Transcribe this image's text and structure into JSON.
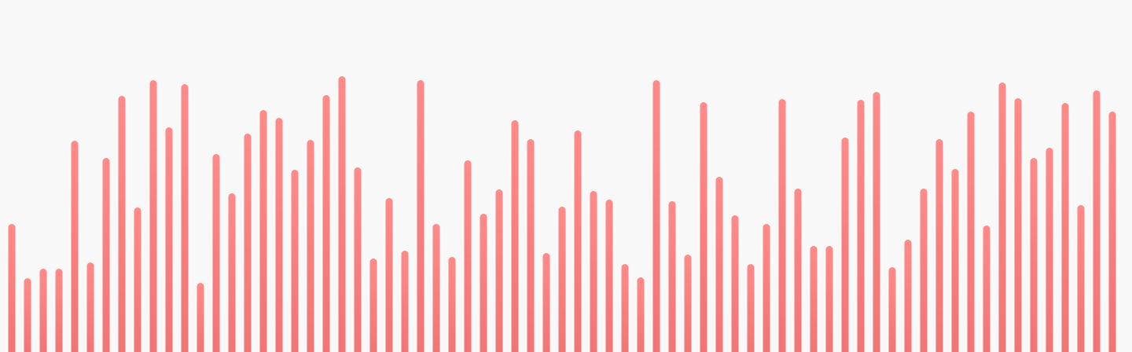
{
  "colors": {
    "background": "#f8f8f8",
    "bar_top": "#ff8a8a",
    "bar_bottom": "#f27474"
  },
  "chart_data": {
    "type": "bar",
    "title": "",
    "xlabel": "",
    "ylabel": "",
    "ylim": [
      0,
      448
    ],
    "grid": false,
    "legend": "none",
    "values": [
      163,
      94,
      106,
      106,
      269,
      114,
      247,
      326,
      184,
      346,
      286,
      341,
      88,
      252,
      202,
      278,
      308,
      298,
      232,
      270,
      327,
      351,
      235,
      119,
      196,
      129,
      346,
      163,
      121,
      244,
      176,
      207,
      295,
      271,
      126,
      185,
      282,
      205,
      194,
      112,
      95,
      346,
      192,
      124,
      318,
      223,
      174,
      112,
      163,
      322,
      208,
      135,
      135,
      273,
      321,
      331,
      108,
      143,
      208,
      271,
      233,
      306,
      161,
      343,
      323,
      247,
      260,
      317,
      187,
      333,
      306
    ]
  }
}
